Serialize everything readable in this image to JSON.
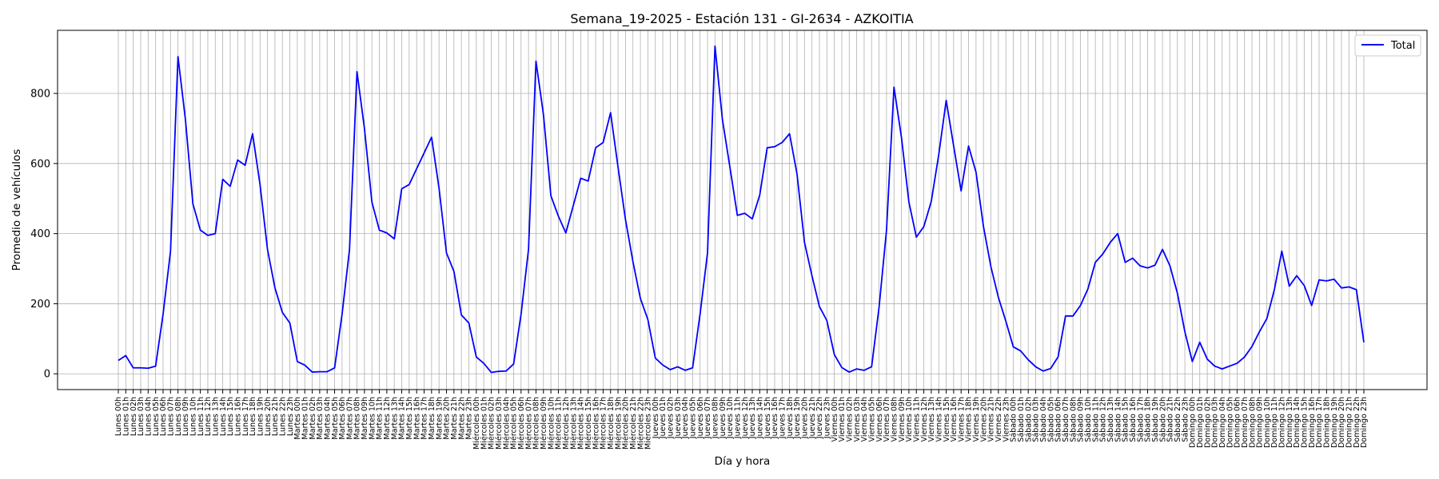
{
  "chart_data": {
    "type": "line",
    "title": "Semana_19-2025 - Estación 131 - GI-2634  - AZKOITIA",
    "xlabel": "Día y hora",
    "ylabel": "Promedio de vehículos",
    "ylim": [
      -45,
      980
    ],
    "yticks": [
      0,
      200,
      400,
      600,
      800
    ],
    "grid": true,
    "legend_position": "upper right",
    "days": [
      "Lunes",
      "Martes",
      "Miércoles",
      "Jueves",
      "Viernes",
      "Sábado",
      "Domingo"
    ],
    "series": [
      {
        "name": "Total",
        "color": "#0000ff",
        "values": [
          38,
          52,
          17,
          17,
          16,
          22,
          170,
          350,
          905,
          725,
          485,
          410,
          395,
          400,
          555,
          535,
          610,
          595,
          685,
          540,
          355,
          245,
          175,
          145,
          35,
          25,
          5,
          6,
          6,
          17,
          170,
          355,
          862,
          700,
          490,
          410,
          402,
          385,
          528,
          540,
          585,
          630,
          675,
          530,
          345,
          292,
          168,
          145,
          48,
          30,
          4,
          7,
          8,
          28,
          170,
          355,
          892,
          740,
          508,
          450,
          402,
          480,
          558,
          550,
          645,
          660,
          745,
          590,
          440,
          320,
          215,
          155,
          45,
          25,
          12,
          20,
          10,
          17,
          170,
          345,
          935,
          725,
          590,
          452,
          458,
          442,
          510,
          645,
          648,
          660,
          685,
          570,
          375,
          280,
          192,
          152,
          55,
          18,
          5,
          14,
          10,
          20,
          190,
          410,
          818,
          675,
          490,
          390,
          420,
          492,
          625,
          780,
          650,
          522,
          650,
          575,
          420,
          305,
          218,
          150,
          77,
          65,
          40,
          20,
          8,
          15,
          48,
          165,
          165,
          195,
          242,
          318,
          342,
          375,
          400,
          318,
          330,
          308,
          302,
          310,
          355,
          308,
          230,
          120,
          35,
          90,
          42,
          22,
          14,
          22,
          30,
          48,
          78,
          120,
          158,
          240,
          350,
          250,
          280,
          252,
          195,
          268,
          265,
          270,
          245,
          248,
          240,
          90
        ]
      }
    ]
  }
}
